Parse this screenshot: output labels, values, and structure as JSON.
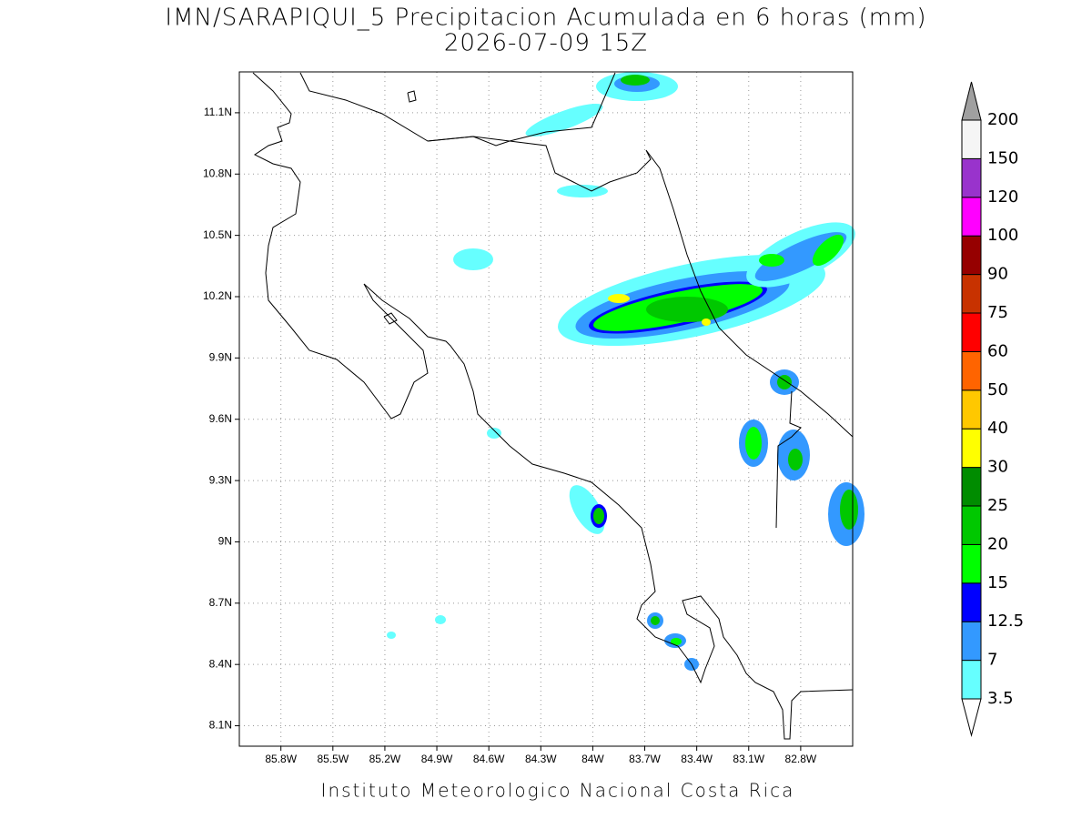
{
  "map": {
    "title": "IMN/SARAPIQUI_5 Precipitacion Acumulada en 6 horas (mm)",
    "subtitle": "2026-07-09 15Z",
    "footer": "Instituto Meteorologico Nacional Costa Rica",
    "xlim": [
      -86.04,
      -82.5
    ],
    "ylim": [
      8.0,
      11.3
    ],
    "xticks": [
      {
        "value": -85.8,
        "label": "85.8W"
      },
      {
        "value": -85.5,
        "label": "85.5W"
      },
      {
        "value": -85.2,
        "label": "85.2W"
      },
      {
        "value": -84.9,
        "label": "84.9W"
      },
      {
        "value": -84.6,
        "label": "84.6W"
      },
      {
        "value": -84.3,
        "label": "84.3W"
      },
      {
        "value": -84.0,
        "label": "84W"
      },
      {
        "value": -83.7,
        "label": "83.7W"
      },
      {
        "value": -83.4,
        "label": "83.4W"
      },
      {
        "value": -83.1,
        "label": "83.1W"
      },
      {
        "value": -82.8,
        "label": "82.8W"
      }
    ],
    "yticks": [
      {
        "value": 8.1,
        "label": "8.1N"
      },
      {
        "value": 8.4,
        "label": "8.4N"
      },
      {
        "value": 8.7,
        "label": "8.7N"
      },
      {
        "value": 9.0,
        "label": "9N"
      },
      {
        "value": 9.3,
        "label": "9.3N"
      },
      {
        "value": 9.6,
        "label": "9.6N"
      },
      {
        "value": 9.9,
        "label": "9.9N"
      },
      {
        "value": 10.2,
        "label": "10.2N"
      },
      {
        "value": 10.5,
        "label": "10.5N"
      },
      {
        "value": 10.8,
        "label": "10.8N"
      },
      {
        "value": 11.1,
        "label": "11.1N"
      }
    ],
    "grid": true,
    "colorbar": {
      "levels": [
        3.5,
        7,
        12.5,
        15,
        20,
        25,
        30,
        40,
        50,
        60,
        75,
        90,
        100,
        120,
        150,
        200
      ],
      "colors": [
        "#66ffff",
        "#3399ff",
        "#0000ff",
        "#00ff00",
        "#00c800",
        "#008c00",
        "#ffff00",
        "#ffc800",
        "#ff6400",
        "#ff0000",
        "#c83200",
        "#960000",
        "#ff00ff",
        "#9933cc",
        "#f5f5f5"
      ],
      "under_color": "#ffffff",
      "over_color": "#a0a0a0"
    }
  }
}
